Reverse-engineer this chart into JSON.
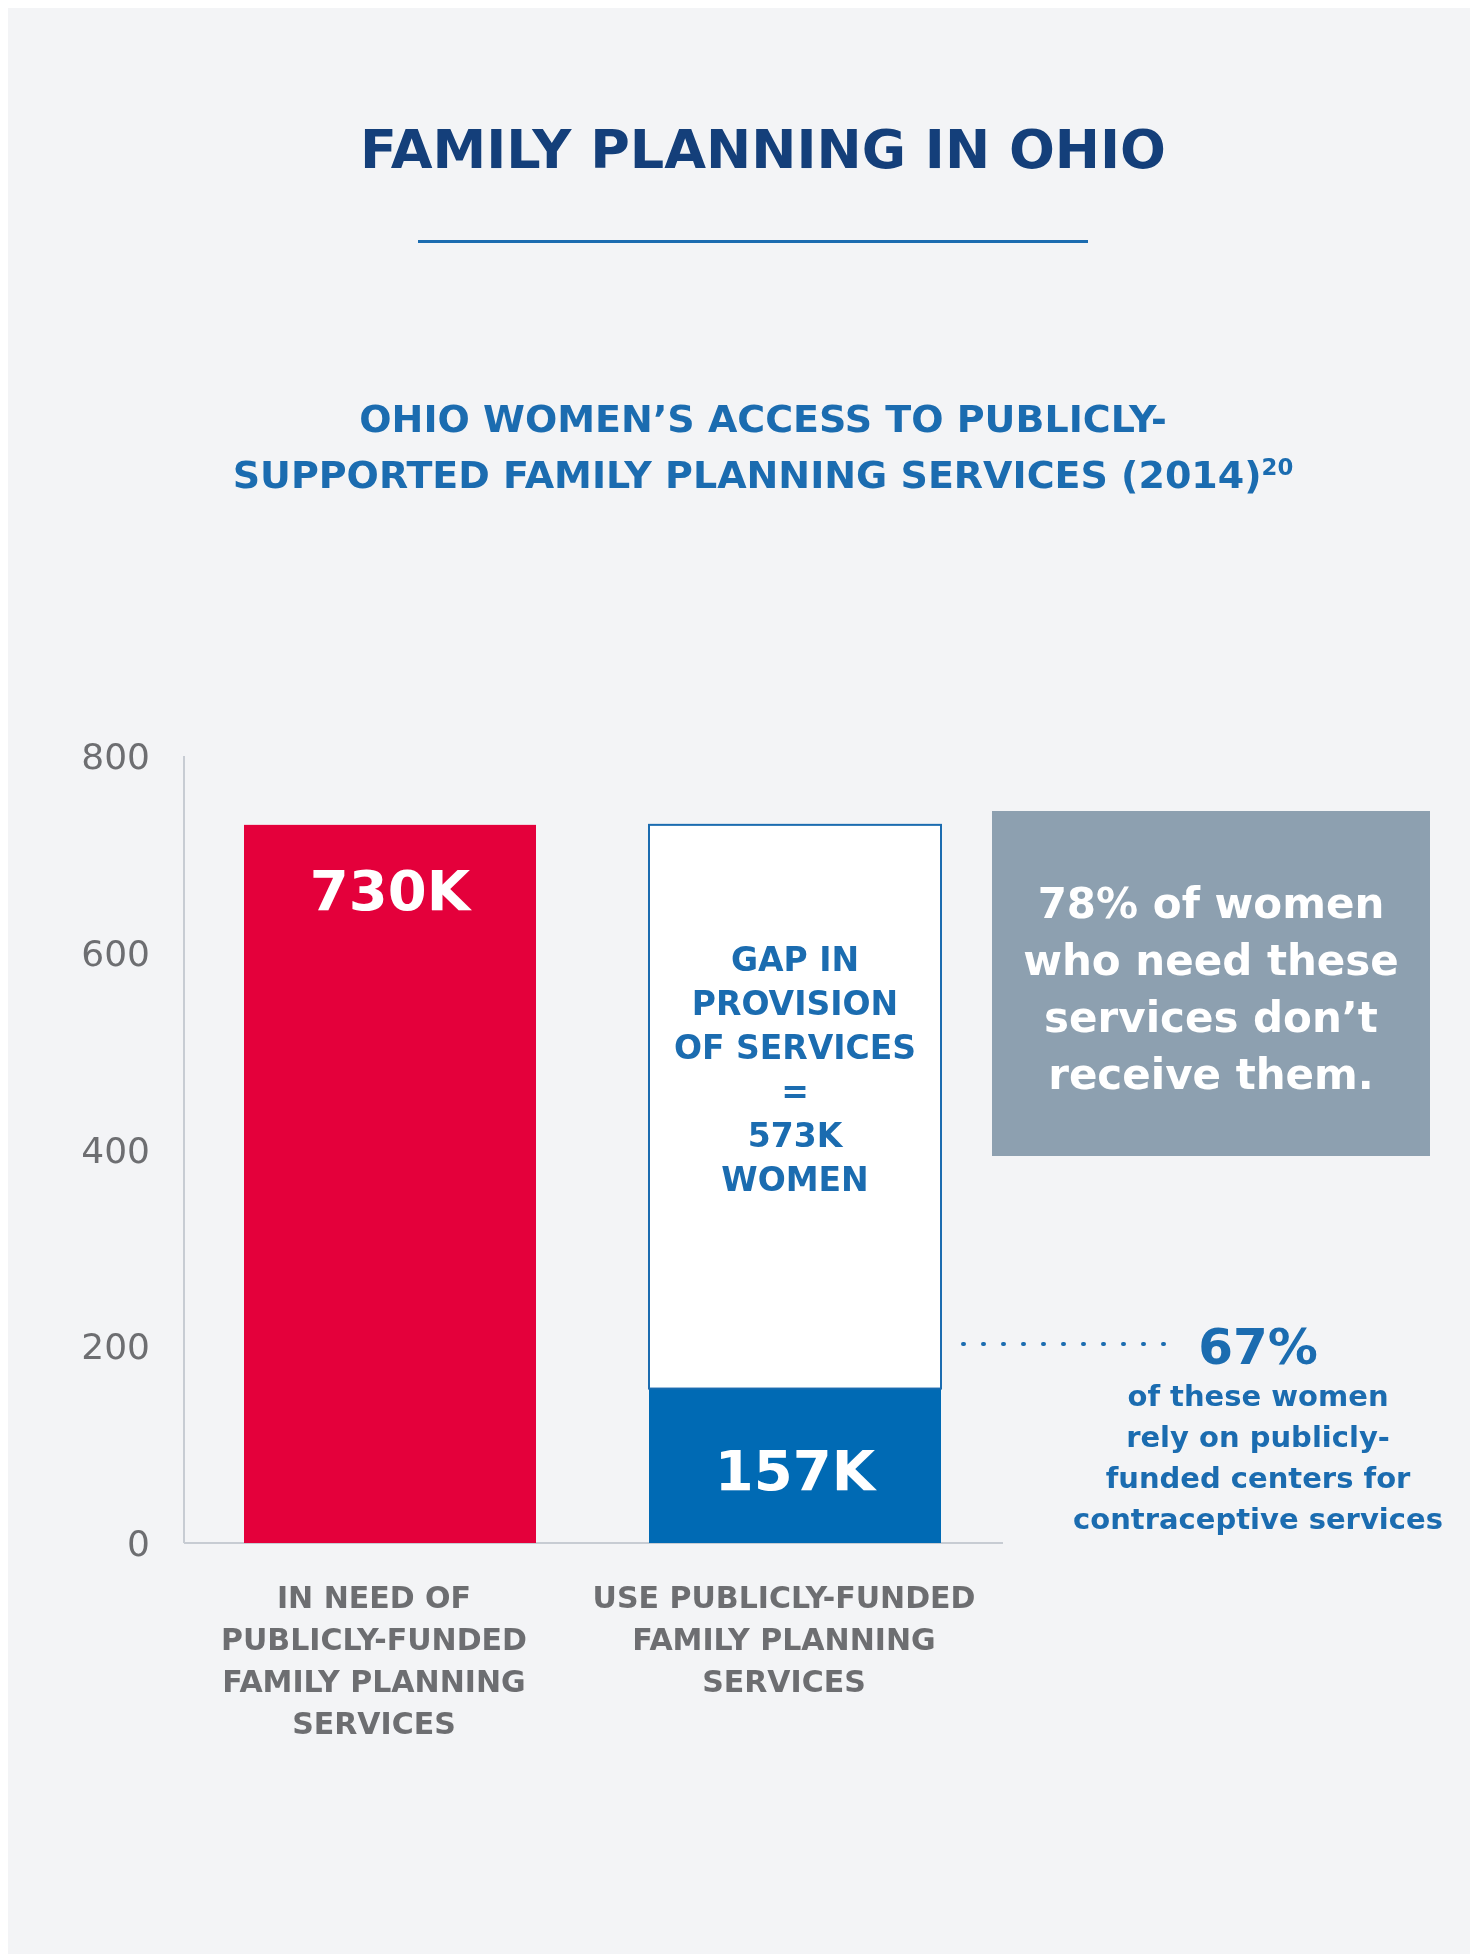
{
  "chart_data": {
    "type": "bar",
    "title": "FAMILY PLANNING IN OHIO",
    "subtitle": "OHIO WOMEN’S ACCESS TO PUBLICLY-\nSUPPORTED FAMILY PLANNING SERVICES (2014)$^{20}$",
    "categories": [
      "IN NEED OF\nPUBLICLY-FUNDED\nFAMILY PLANNING\nSERVICES",
      "USE PUBLICLY-FUNDED\nFAMILY PLANNING\nSERVICES"
    ],
    "stacked": true,
    "series": [
      {
        "values": [
          730,
          157
        ],
        "colors": [
          "#e4003b",
          "#006ab4"
        ],
        "value_labels": [
          "730K",
          "157K"
        ]
      },
      {
        "values": [
          null,
          573
        ],
        "color": "#ffffff",
        "value_labels": [
          null,
          "GAP IN\nPROVISION\nOF SERVICES\n=\n573K\nWOMEN"
        ]
      }
    ],
    "ylim": [
      0,
      800
    ],
    "yticks": [
      0,
      200,
      400,
      600,
      800
    ],
    "annotations": [
      "78% of women\nwho need these\nservices don’t\nreceive them.",
      "67%\nof these women\nrely on publicly-\nfunded centers for\ncontraceptive services"
    ]
  }
}
